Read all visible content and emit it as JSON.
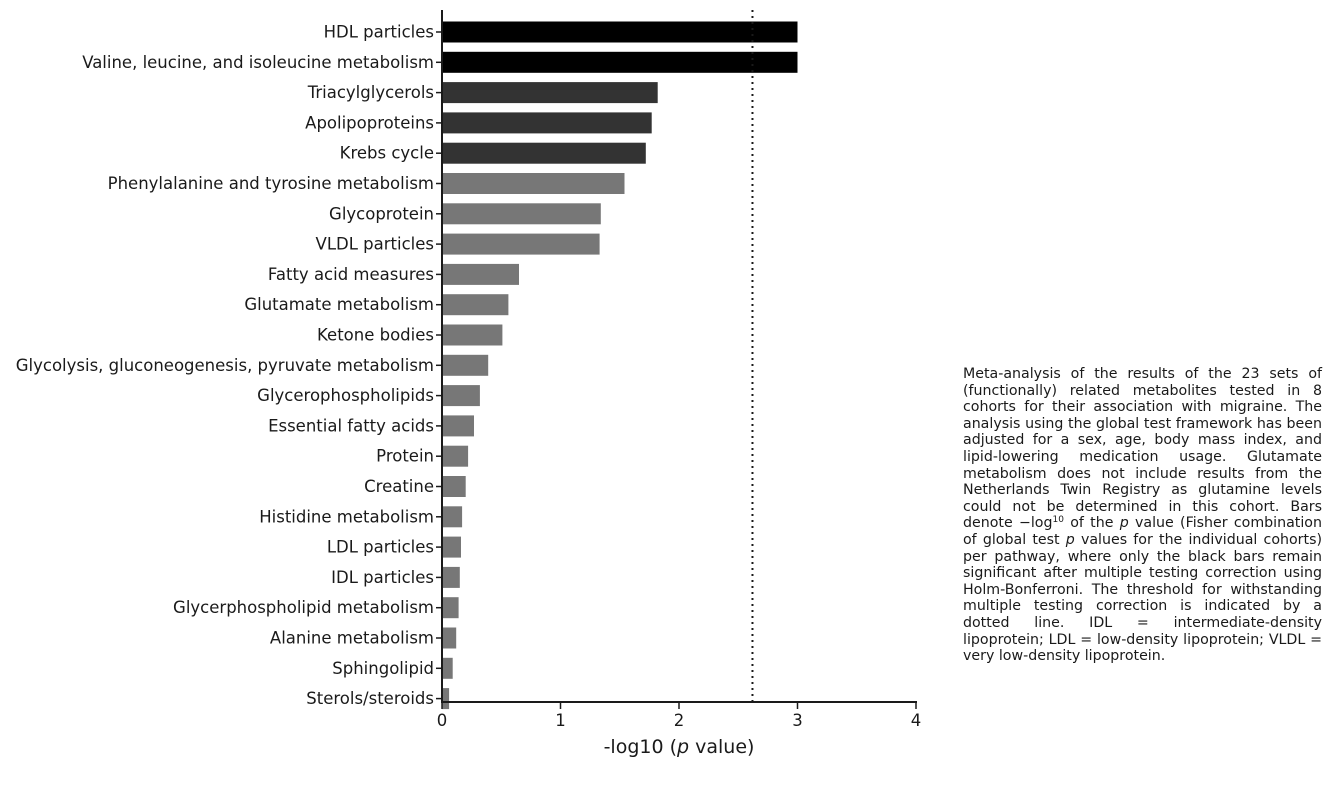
{
  "chart_data": {
    "type": "bar",
    "orientation": "horizontal",
    "xlabel_prefix": "-log10 (",
    "xlabel_italic": "p",
    "xlabel_suffix": " value)",
    "xlim": [
      0,
      4
    ],
    "xticks": [
      "0",
      "1",
      "2",
      "3",
      "4"
    ],
    "threshold": 2.62,
    "threshold_style": "dotted",
    "grid": false,
    "legend": "none",
    "categories": [
      "HDL particles",
      "Valine, leucine, and isoleucine metabolism",
      "Triacylglycerols",
      "Apolipoproteins",
      "Krebs cycle",
      "Phenylalanine and tyrosine metabolism",
      "Glycoprotein",
      "VLDL particles",
      "Fatty acid measures",
      "Glutamate metabolism",
      "Ketone bodies",
      "Glycolysis, gluconeogenesis, pyruvate metabolism",
      "Glycerophospholipids",
      "Essential fatty acids",
      "Protein",
      "Creatine",
      "Histidine metabolism",
      "LDL particles",
      "IDL particles",
      "Glycerphospholipid metabolism",
      "Alanine metabolism",
      "Sphingolipid",
      "Sterols/steroids"
    ],
    "values": [
      3.0,
      3.0,
      1.82,
      1.77,
      1.72,
      1.54,
      1.34,
      1.33,
      0.65,
      0.56,
      0.51,
      0.39,
      0.32,
      0.27,
      0.22,
      0.2,
      0.17,
      0.16,
      0.15,
      0.14,
      0.12,
      0.09,
      0.06
    ],
    "colors": [
      "#000000",
      "#000000",
      "#333333",
      "#333333",
      "#333333",
      "#777777",
      "#777777",
      "#777777",
      "#777777",
      "#777777",
      "#777777",
      "#777777",
      "#777777",
      "#777777",
      "#777777",
      "#777777",
      "#777777",
      "#777777",
      "#777777",
      "#777777",
      "#777777",
      "#777777",
      "#777777"
    ]
  },
  "caption": {
    "part1": "Meta-analysis of the results of the 23 sets of (functionally) related metabolites tested in 8 cohorts for their association with migraine. The analysis using the global test framework has been adjusted for a sex, age, body mass index, and lipid-lowering medication usage. Glutamate metabolism does not include results from the Netherlands Twin Registry as glutamine levels could not be determined in this cohort. Bars denote −log",
    "sup": "10",
    "part2": " of the ",
    "p1": "p",
    "part3": " value (Fisher combination of global test ",
    "p2": "p",
    "part4": " values for the individual cohorts) per pathway, where only the black bars remain significant after multiple testing correction using Holm-Bonferroni. The threshold for withstanding multiple testing correction is indicated by a dotted line. IDL = intermediate-density lipoprotein; LDL = low-density lipoprotein; VLDL = very low-density lipoprotein."
  }
}
